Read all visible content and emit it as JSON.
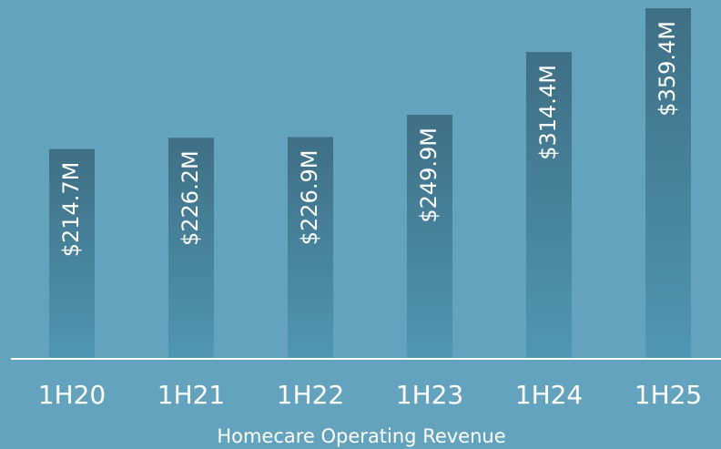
{
  "chart_data": {
    "type": "bar",
    "title": "Homecare Operating Revenue",
    "categories": [
      "1H20",
      "1H21",
      "1H22",
      "1H23",
      "1H24",
      "1H25"
    ],
    "values": [
      214.7,
      226.2,
      226.9,
      249.9,
      314.4,
      359.4
    ],
    "value_labels": [
      "$214.7M",
      "$226.2M",
      "$226.9M",
      "$249.9M",
      "$314.4M",
      "$359.4M"
    ],
    "color": "#3f6f85"
  }
}
